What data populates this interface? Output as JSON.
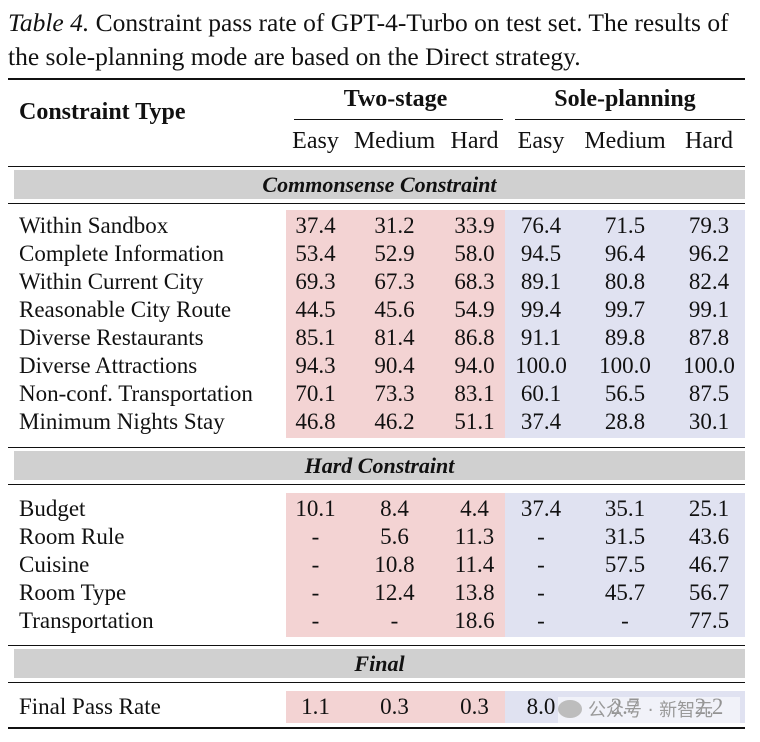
{
  "caption": {
    "tag": "Table 4.",
    "text": " Constraint pass rate of GPT-4-Turbo on test set.  The results of the sole-planning mode are based on the Direct strategy."
  },
  "header": {
    "constraint_type": "Constraint Type",
    "group_two_stage": "Two-stage",
    "group_sole_planning": "Sole-planning",
    "sub_columns": [
      "Easy",
      "Medium",
      "Hard",
      "Easy",
      "Medium",
      "Hard"
    ]
  },
  "sections": [
    {
      "title": "Commonsense Constraint",
      "rows": [
        {
          "label": "Within Sandbox",
          "values": [
            "37.4",
            "31.2",
            "33.9",
            "76.4",
            "71.5",
            "79.3"
          ]
        },
        {
          "label": "Complete Information",
          "values": [
            "53.4",
            "52.9",
            "58.0",
            "94.5",
            "96.4",
            "96.2"
          ]
        },
        {
          "label": "Within Current City",
          "values": [
            "69.3",
            "67.3",
            "68.3",
            "89.1",
            "80.8",
            "82.4"
          ]
        },
        {
          "label": "Reasonable City Route",
          "values": [
            "44.5",
            "45.6",
            "54.9",
            "99.4",
            "99.7",
            "99.1"
          ]
        },
        {
          "label": "Diverse Restaurants",
          "values": [
            "85.1",
            "81.4",
            "86.8",
            "91.1",
            "89.8",
            "87.8"
          ]
        },
        {
          "label": "Diverse Attractions",
          "values": [
            "94.3",
            "90.4",
            "94.0",
            "100.0",
            "100.0",
            "100.0"
          ]
        },
        {
          "label": "Non-conf. Transportation",
          "values": [
            "70.1",
            "73.3",
            "83.1",
            "60.1",
            "56.5",
            "87.5"
          ]
        },
        {
          "label": "Minimum Nights Stay",
          "values": [
            "46.8",
            "46.2",
            "51.1",
            "37.4",
            "28.8",
            "30.1"
          ]
        }
      ]
    },
    {
      "title": "Hard Constraint",
      "rows": [
        {
          "label": "Budget",
          "values": [
            "10.1",
            "8.4",
            "4.4",
            "37.4",
            "35.1",
            "25.1"
          ]
        },
        {
          "label": "Room Rule",
          "values": [
            "-",
            "5.6",
            "11.3",
            "-",
            "31.5",
            "43.6"
          ]
        },
        {
          "label": "Cuisine",
          "values": [
            "-",
            "10.8",
            "11.4",
            "-",
            "57.5",
            "46.7"
          ]
        },
        {
          "label": "Room Type",
          "values": [
            "-",
            "12.4",
            "13.8",
            "-",
            "45.7",
            "56.7"
          ]
        },
        {
          "label": "Transportation",
          "values": [
            "-",
            "-",
            "18.6",
            "-",
            "-",
            "77.5"
          ]
        }
      ]
    },
    {
      "title": "Final",
      "rows": [
        {
          "label": "Final Pass Rate",
          "values": [
            "1.1",
            "0.3",
            "0.3",
            "8.0",
            "2.7",
            "2.2"
          ]
        }
      ]
    }
  ],
  "watermark": "公众号 · 新智元",
  "colors": {
    "two_stage_shade": "#f3d3d3",
    "sole_planning_shade": "#e0e2f1",
    "section_band": "#d0d0d0"
  }
}
